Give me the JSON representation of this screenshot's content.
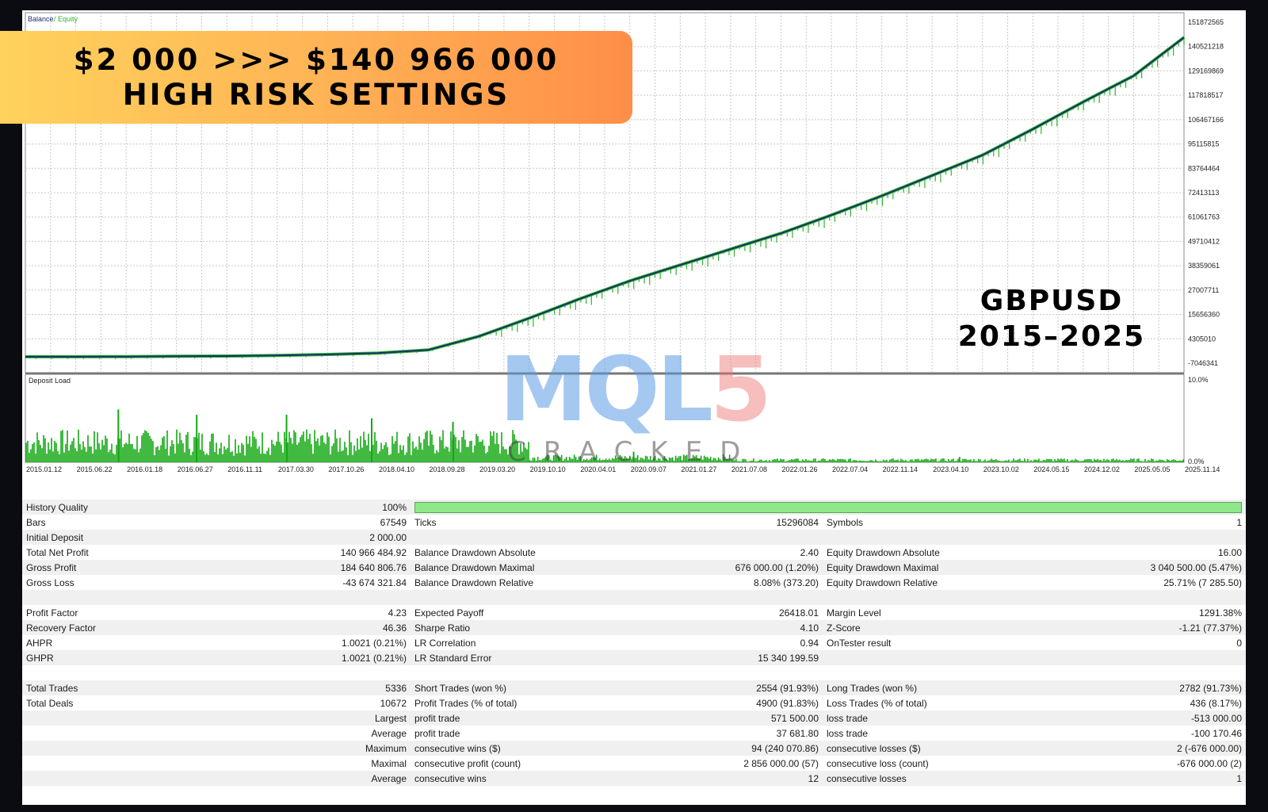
{
  "banner": {
    "line1": "$2 000 >>> $140 966 000",
    "line2": "HIGH RISK SETTINGS"
  },
  "symbol_label": {
    "line1": "GBPUSD",
    "line2": "2015–2025"
  },
  "watermark": {
    "logo_main": "MQL",
    "logo_num": "5",
    "sub": "CRACKED"
  },
  "colors": {
    "balance": "#1a2f6b",
    "equity": "#2fb52f",
    "deposit_load": "#13a813",
    "banner_start": "#ffd25c",
    "banner_end": "#ff8e48"
  },
  "chart_data": [
    {
      "type": "line",
      "legend": [
        {
          "name": "Balance",
          "color": "#1a2f6b"
        },
        {
          "name": "Equity",
          "color": "#2fb52f"
        }
      ],
      "x": [
        "2015.01.12",
        "2015.06.22",
        "2016.01.18",
        "2016.06.27",
        "2016.11.11",
        "2017.03.30",
        "2017.10.26",
        "2018.04.10",
        "2018.09.28",
        "2019.03.20",
        "2019.10.10",
        "2020.04.01",
        "2020.09.07",
        "2021.01.27",
        "2021.07.08",
        "2022.01.26",
        "2022.07.04",
        "2022.11.14",
        "2023.04.10",
        "2023.10.02",
        "2024.05.15",
        "2024.12.02",
        "2025.05.05",
        "2025.11.14"
      ],
      "series": [
        {
          "name": "Balance",
          "values": [
            2000,
            2000,
            60000,
            200000,
            300000,
            600000,
            1000000,
            1600000,
            3000000,
            9000000,
            17000000,
            25500000,
            33500000,
            40500000,
            47500000,
            54500000,
            62500000,
            71000000,
            80000000,
            89000000,
            100500000,
            112500000,
            124000000,
            140966484.92
          ]
        }
      ],
      "y_ticks": [
        "151872565",
        "140521218",
        "129169869",
        "117818517",
        "106467166",
        "95115815",
        "83764464",
        "72413113",
        "61061763",
        "49710412",
        "38359061",
        "27007711",
        "15656360",
        "4305010",
        "-7046341"
      ],
      "ylim": [
        -7046341,
        151872565
      ],
      "grid": true
    },
    {
      "type": "bar",
      "title": "Deposit Load",
      "y_ticks": [
        "10.0%",
        "0.0%"
      ],
      "ylim": [
        0,
        10
      ],
      "period_load": [
        {
          "from": "2015.01.12",
          "to": "2019.10.10",
          "typical": 2.5,
          "spikes": [
            6.0,
            5.4,
            5.4,
            5.0,
            4.6
          ]
        },
        {
          "from": "2019.10.10",
          "to": "2021.07.08",
          "typical": 0.6,
          "spikes": [
            1.2
          ]
        },
        {
          "from": "2021.07.08",
          "to": "2025.11.14",
          "typical": 0.3,
          "spikes": [
            0.6
          ]
        }
      ]
    }
  ],
  "stats": {
    "history_quality": {
      "label": "History Quality",
      "value": "100%"
    },
    "rows": [
      [
        "Bars",
        "67549",
        "Ticks",
        "15296084",
        "Symbols",
        "1"
      ],
      [
        "Initial Deposit",
        "2 000.00",
        "",
        "",
        "",
        ""
      ],
      [
        "Total Net Profit",
        "140 966 484.92",
        "Balance Drawdown Absolute",
        "2.40",
        "Equity Drawdown Absolute",
        "16.00"
      ],
      [
        "Gross Profit",
        "184 640 806.76",
        "Balance Drawdown Maximal",
        "676 000.00 (1.20%)",
        "Equity Drawdown Maximal",
        "3 040 500.00 (5.47%)"
      ],
      [
        "Gross Loss",
        "-43 674 321.84",
        "Balance Drawdown Relative",
        "8.08% (373.20)",
        "Equity Drawdown Relative",
        "25.71% (7 285.50)"
      ],
      [
        "",
        "",
        "",
        "",
        "",
        ""
      ],
      [
        "Profit Factor",
        "4.23",
        "Expected Payoff",
        "26418.01",
        "Margin Level",
        "1291.38%"
      ],
      [
        "Recovery Factor",
        "46.36",
        "Sharpe Ratio",
        "4.10",
        "Z-Score",
        "-1.21 (77.37%)"
      ],
      [
        "AHPR",
        "1.0021 (0.21%)",
        "LR Correlation",
        "0.94",
        "OnTester result",
        "0"
      ],
      [
        "GHPR",
        "1.0021 (0.21%)",
        "LR Standard Error",
        "15 340 199.59",
        "",
        ""
      ],
      [
        "",
        "",
        "",
        "",
        "",
        ""
      ],
      [
        "Total Trades",
        "5336",
        "Short Trades (won %)",
        "2554 (91.93%)",
        "Long Trades (won %)",
        "2782 (91.73%)"
      ],
      [
        "Total Deals",
        "10672",
        "Profit Trades (% of total)",
        "4900 (91.83%)",
        "Loss Trades (% of total)",
        "436 (8.17%)"
      ],
      [
        "",
        "Largest",
        "profit trade",
        "571 500.00",
        "loss trade",
        "-513 000.00"
      ],
      [
        "",
        "Average",
        "profit trade",
        "37 681.80",
        "loss trade",
        "-100 170.46"
      ],
      [
        "",
        "Maximum",
        "consecutive wins ($)",
        "94 (240 070.86)",
        "consecutive losses ($)",
        "2 (-676 000.00)"
      ],
      [
        "",
        "Maximal",
        "consecutive profit (count)",
        "2 856 000.00 (57)",
        "consecutive loss (count)",
        "-676 000.00 (2)"
      ],
      [
        "",
        "Average",
        "consecutive wins",
        "12",
        "consecutive losses",
        "1"
      ]
    ]
  }
}
